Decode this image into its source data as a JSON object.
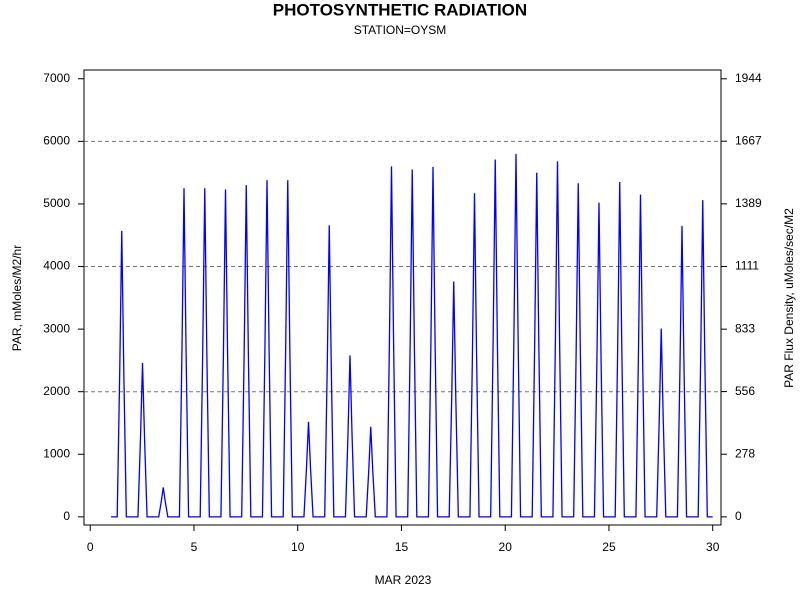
{
  "chart_data": {
    "type": "line",
    "title": "PHOTOSYNTHETIC RADIATION",
    "subtitle": "STATION=OYSM",
    "xlabel": "MAR 2023",
    "ylabel": "PAR, mMoles/M2/hr",
    "y2label": "PAR Flux Density, uMoles/sec/M2",
    "x": [
      1.0,
      1.3,
      1.42,
      1.52,
      1.62,
      1.74,
      2.3,
      2.42,
      2.52,
      2.62,
      2.74,
      3.3,
      3.42,
      3.52,
      3.62,
      3.74,
      4.3,
      4.42,
      4.52,
      4.62,
      4.74,
      5.3,
      5.42,
      5.52,
      5.62,
      5.74,
      6.3,
      6.42,
      6.52,
      6.62,
      6.74,
      7.3,
      7.42,
      7.52,
      7.62,
      7.74,
      8.3,
      8.42,
      8.52,
      8.62,
      8.74,
      9.3,
      9.42,
      9.52,
      9.62,
      9.74,
      10.3,
      10.42,
      10.52,
      10.62,
      10.74,
      11.3,
      11.42,
      11.52,
      11.62,
      11.74,
      12.3,
      12.42,
      12.52,
      12.62,
      12.74,
      13.3,
      13.42,
      13.52,
      13.62,
      13.74,
      14.3,
      14.42,
      14.52,
      14.62,
      14.74,
      15.3,
      15.42,
      15.52,
      15.62,
      15.74,
      16.3,
      16.42,
      16.52,
      16.62,
      16.74,
      17.3,
      17.42,
      17.52,
      17.62,
      17.74,
      18.3,
      18.42,
      18.52,
      18.62,
      18.74,
      19.3,
      19.42,
      19.52,
      19.62,
      19.74,
      20.3,
      20.42,
      20.52,
      20.62,
      20.74,
      21.3,
      21.42,
      21.52,
      21.62,
      21.74,
      22.3,
      22.42,
      22.52,
      22.62,
      22.74,
      23.3,
      23.42,
      23.52,
      23.62,
      23.74,
      24.3,
      24.42,
      24.52,
      24.62,
      24.74,
      25.3,
      25.42,
      25.52,
      25.62,
      25.74,
      26.3,
      26.42,
      26.52,
      26.62,
      26.74,
      27.3,
      27.42,
      27.52,
      27.62,
      27.74,
      28.3,
      28.42,
      28.52,
      28.62,
      28.74,
      29.3,
      29.42,
      29.52,
      29.62,
      29.74,
      30.0
    ],
    "series": [
      {
        "name": "PAR",
        "color": "#0000ff",
        "values": [
          0,
          0,
          2285,
          4570,
          2285,
          0,
          0,
          1230,
          2460,
          1230,
          0,
          0,
          235,
          470,
          235,
          0,
          0,
          2625,
          5250,
          2625,
          0,
          0,
          2625,
          5250,
          2625,
          0,
          0,
          2615,
          5230,
          2615,
          0,
          0,
          2650,
          5300,
          2650,
          0,
          0,
          2690,
          5380,
          2690,
          0,
          0,
          2690,
          5380,
          2690,
          0,
          0,
          760,
          1520,
          760,
          0,
          0,
          2330,
          4660,
          2330,
          0,
          0,
          1290,
          2580,
          1290,
          0,
          0,
          720,
          1440,
          720,
          0,
          0,
          2800,
          5600,
          2800,
          0,
          0,
          2775,
          5550,
          2775,
          0,
          0,
          2795,
          5590,
          2795,
          0,
          0,
          1880,
          3760,
          1880,
          0,
          0,
          2585,
          5170,
          2585,
          0,
          0,
          2855,
          5710,
          2855,
          0,
          0,
          2900,
          5800,
          2900,
          0,
          0,
          2750,
          5500,
          2750,
          0,
          0,
          2840,
          5680,
          2840,
          0,
          0,
          2665,
          5330,
          2665,
          0,
          0,
          2510,
          5020,
          2510,
          0,
          0,
          2675,
          5350,
          2675,
          0,
          0,
          2575,
          5150,
          2575,
          0,
          0,
          1505,
          3010,
          1505,
          0,
          0,
          2325,
          4650,
          2325,
          0,
          0,
          2530,
          5060,
          2530,
          0,
          0
        ]
      }
    ],
    "xlim": [
      -0.3,
      30.4
    ],
    "xticks": [
      0,
      5,
      10,
      15,
      20,
      25,
      30
    ],
    "ylim": [
      -130,
      7140
    ],
    "yticks": [
      0,
      1000,
      2000,
      3000,
      4000,
      5000,
      6000,
      7000
    ],
    "y2lim": [
      -36,
      1983
    ],
    "y2ticks": [
      0,
      278,
      556,
      833,
      1111,
      1389,
      1667,
      1944
    ],
    "grid_lines": [
      2000,
      4000,
      6000
    ]
  }
}
